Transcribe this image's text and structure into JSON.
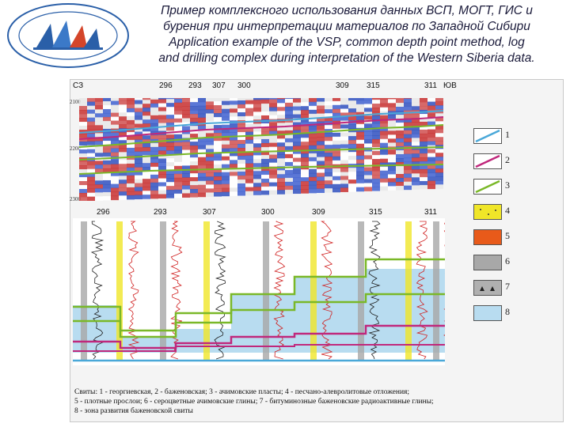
{
  "title": {
    "ru_line1": "Пример комплексного использования данных ВСП, МОГТ, ГИС и",
    "ru_line2": "бурения при интерпретации материалов по Западной Сибири",
    "en_line1": "Application example of the VSP, common depth point method, log",
    "en_line2": "and drilling complex during interpretation of the Western Siberia data."
  },
  "logo": {
    "name": "institute-logo"
  },
  "section": {
    "left_dir": "СЗ",
    "right_dir": "ЮВ",
    "wells_top": [
      "296",
      "293",
      "307",
      "300",
      "309",
      "315",
      "311"
    ],
    "wells_bottom": [
      "296",
      "293",
      "307",
      "300",
      "309",
      "315",
      "311"
    ],
    "depths": [
      "2100",
      "2200",
      "2300"
    ]
  },
  "legend": {
    "items": [
      {
        "num": "1",
        "color": "#4aa8d8",
        "kind": "line"
      },
      {
        "num": "2",
        "color": "#c0287c",
        "kind": "line"
      },
      {
        "num": "3",
        "color": "#7ab828",
        "kind": "line"
      },
      {
        "num": "4",
        "color": "#f0e628",
        "kind": "dots"
      },
      {
        "num": "5",
        "color": "#e85a1a",
        "kind": "fill"
      },
      {
        "num": "6",
        "color": "#a8a8a8",
        "kind": "fill"
      },
      {
        "num": "7",
        "color": "#b0b0b0",
        "kind": "triangles"
      },
      {
        "num": "8",
        "color": "#b8dcf0",
        "kind": "fill"
      }
    ]
  },
  "caption": {
    "line1": "Свиты: 1 - георгиевская, 2 - баженовская; 3 - ачимовские пласты; 4 - песчано-алевролитовые отложения;",
    "line2": "5 - плотные прослои; 6 - сероцветные ачимовские глины; 7 - битуминозные баженовские радиоактивные глины;",
    "line3": "8 - зона развития баженовской свиты"
  }
}
